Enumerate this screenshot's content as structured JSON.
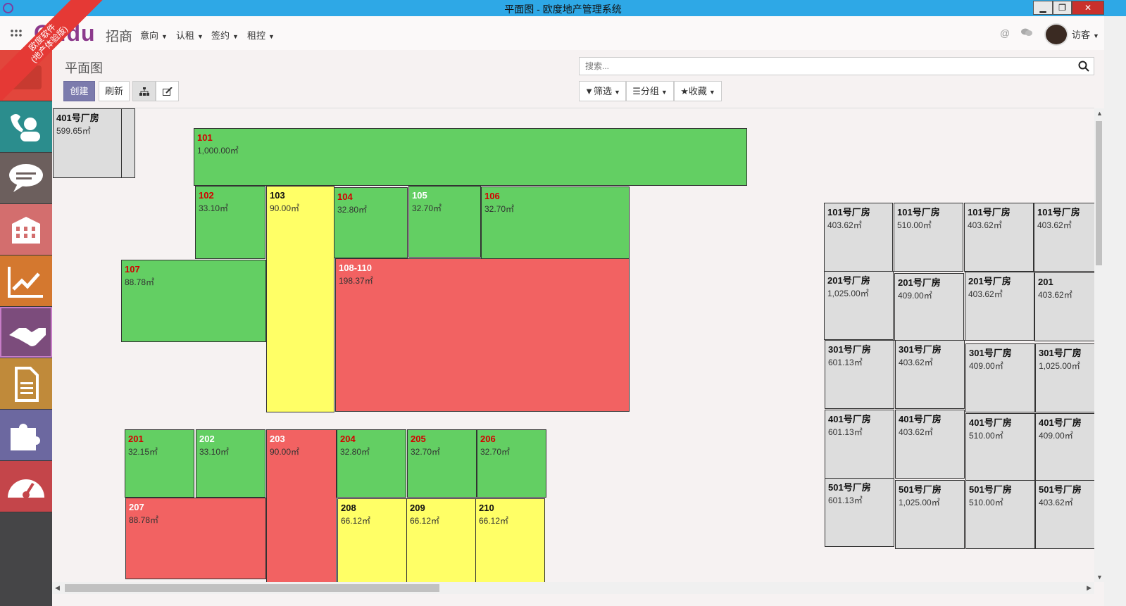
{
  "window": {
    "title": "平面图 - 欧度地产管理系统",
    "min": "▁",
    "restore": "❐",
    "close": "✕"
  },
  "topbar": {
    "brand": "Oudu",
    "brand_sub": "招商",
    "ribbon": "欧度软件\n(地产体验版)",
    "menus": [
      "意向",
      "认租",
      "签约",
      "租控"
    ],
    "user": "访客"
  },
  "page": {
    "title": "平面图"
  },
  "toolbar": {
    "create": "创建",
    "refresh": "刷新"
  },
  "search": {
    "placeholder": "搜索..."
  },
  "filters": {
    "filter": "筛选",
    "group": "分组",
    "favorites": "收藏"
  },
  "colors": {
    "available": "#63cf63",
    "reserved": "#ffff66",
    "rented": "#f26262",
    "other": "#dddddd",
    "sidebar": "#454547",
    "accent": "#7c7bad"
  },
  "sidebar": [
    {
      "icon": "inbox-icon",
      "color": "#e2463c"
    },
    {
      "icon": "phone-contact-icon",
      "color": "#2b8d8d"
    },
    {
      "icon": "chat-icon",
      "color": "#6c5f5d"
    },
    {
      "icon": "building-icon",
      "color": "#d36e6e"
    },
    {
      "icon": "chart-line-icon",
      "color": "#d4782f"
    },
    {
      "icon": "handshake-icon",
      "color": "#7c4c7c"
    },
    {
      "icon": "document-icon",
      "color": "#c08a3a"
    },
    {
      "icon": "puzzle-icon",
      "color": "#6c68a0"
    },
    {
      "icon": "dashboard-icon",
      "color": "#c4454a"
    }
  ],
  "rooms": [
    {
      "id": "a1",
      "name": "401号厂房",
      "area": "599.65㎡",
      "c": "gr"
    },
    {
      "id": "a2",
      "name": "",
      "area": "",
      "c": "gr"
    },
    {
      "id": "r101",
      "name": "101",
      "area": "1,000.00㎡",
      "c": "g"
    },
    {
      "id": "r102",
      "name": "102",
      "area": "33.10㎡",
      "c": "g"
    },
    {
      "id": "r103",
      "name": "103",
      "area": "90.00㎡",
      "c": "y"
    },
    {
      "id": "r104",
      "name": "104",
      "area": "32.80㎡",
      "c": "g"
    },
    {
      "id": "r105",
      "name": "105",
      "area": "32.70㎡",
      "c": "g"
    },
    {
      "id": "r106",
      "name": "106",
      "area": "32.70㎡",
      "c": "g"
    },
    {
      "id": "r107",
      "name": "107",
      "area": "88.78㎡",
      "c": "g"
    },
    {
      "id": "r108",
      "name": "108-110",
      "area": "198.37㎡",
      "c": "r"
    },
    {
      "id": "r201",
      "name": "201",
      "area": "32.15㎡",
      "c": "g"
    },
    {
      "id": "r202",
      "name": "202",
      "area": "33.10㎡",
      "c": "g"
    },
    {
      "id": "r203",
      "name": "203",
      "area": "90.00㎡",
      "c": "r"
    },
    {
      "id": "r204",
      "name": "204",
      "area": "32.80㎡",
      "c": "g"
    },
    {
      "id": "r205",
      "name": "205",
      "area": "32.70㎡",
      "c": "g"
    },
    {
      "id": "r206",
      "name": "206",
      "area": "32.70㎡",
      "c": "g"
    },
    {
      "id": "r207",
      "name": "207",
      "area": "88.78㎡",
      "c": "r"
    },
    {
      "id": "r208",
      "name": "208",
      "area": "66.12㎡",
      "c": "y"
    },
    {
      "id": "r209",
      "name": "209",
      "area": "66.12㎡",
      "c": "y"
    },
    {
      "id": "r210",
      "name": "210",
      "area": "66.12㎡",
      "c": "y"
    },
    {
      "id": "b11",
      "name": "101号厂房",
      "area": "403.62㎡",
      "c": "gr"
    },
    {
      "id": "b12",
      "name": "101号厂房",
      "area": "510.00㎡",
      "c": "gr"
    },
    {
      "id": "b13",
      "name": "101号厂房",
      "area": "403.62㎡",
      "c": "gr"
    },
    {
      "id": "b14",
      "name": "101号厂房",
      "area": "403.62㎡",
      "c": "gr"
    },
    {
      "id": "b21",
      "name": "201号厂房",
      "area": "1,025.00㎡",
      "c": "gr"
    },
    {
      "id": "b22",
      "name": "201号厂房",
      "area": "409.00㎡",
      "c": "gr"
    },
    {
      "id": "b23",
      "name": "201号厂房",
      "area": "403.62㎡",
      "c": "gr"
    },
    {
      "id": "b24",
      "name": "201",
      "area": "403.62㎡",
      "c": "gr"
    },
    {
      "id": "b31",
      "name": "301号厂房",
      "area": "601.13㎡",
      "c": "gr"
    },
    {
      "id": "b32",
      "name": "301号厂房",
      "area": "403.62㎡",
      "c": "gr"
    },
    {
      "id": "b33",
      "name": "301号厂房",
      "area": "409.00㎡",
      "c": "gr"
    },
    {
      "id": "b34",
      "name": "301号厂房",
      "area": "1,025.00㎡",
      "c": "gr"
    },
    {
      "id": "b41",
      "name": "401号厂房",
      "area": "601.13㎡",
      "c": "gr"
    },
    {
      "id": "b42",
      "name": "401号厂房",
      "area": "403.62㎡",
      "c": "gr"
    },
    {
      "id": "b43",
      "name": "401号厂房",
      "area": "510.00㎡",
      "c": "gr"
    },
    {
      "id": "b44",
      "name": "401号厂房",
      "area": "409.00㎡",
      "c": "gr"
    },
    {
      "id": "b51",
      "name": "501号厂房",
      "area": "601.13㎡",
      "c": "gr"
    },
    {
      "id": "b52",
      "name": "501号厂房",
      "area": "1,025.00㎡",
      "c": "gr"
    },
    {
      "id": "b53",
      "name": "501号厂房",
      "area": "510.00㎡",
      "c": "gr"
    },
    {
      "id": "b54",
      "name": "501号厂房",
      "area": "403.62㎡",
      "c": "gr"
    }
  ]
}
